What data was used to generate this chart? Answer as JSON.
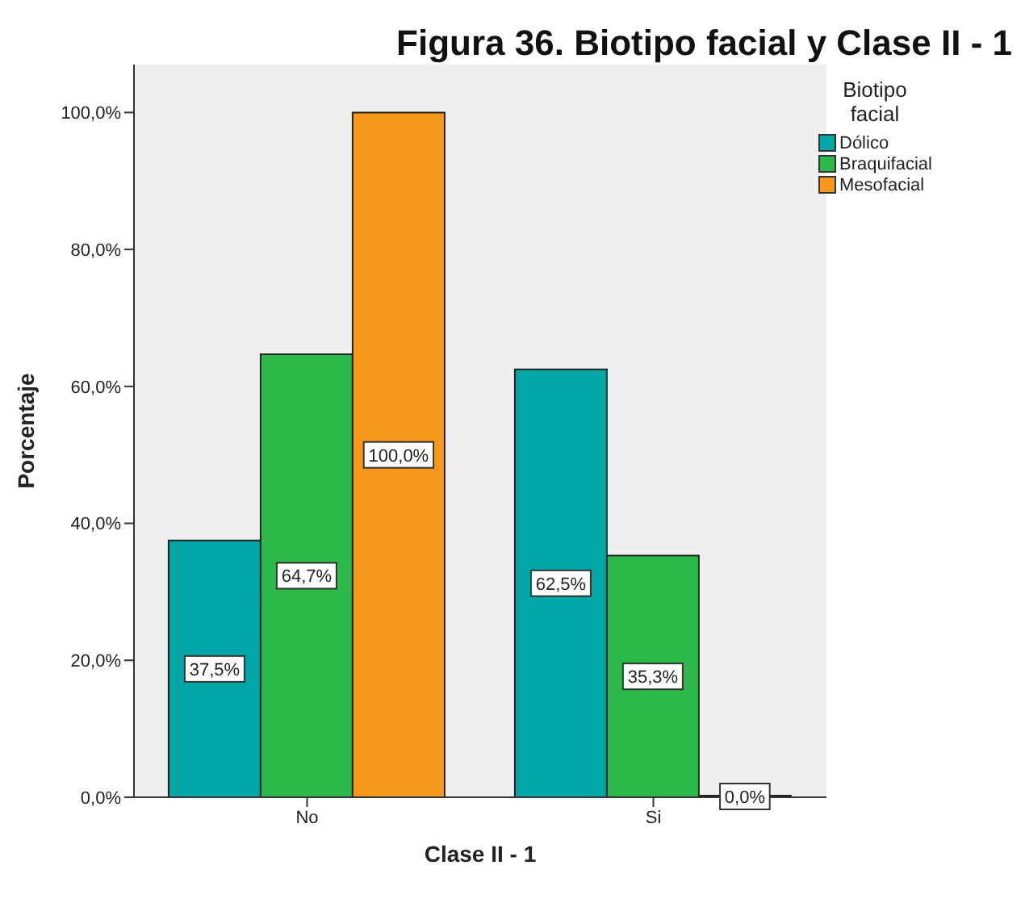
{
  "chart_data": {
    "type": "bar",
    "title": "Figura 36. Biotipo facial y Clase II - 1",
    "xlabel": "Clase II - 1",
    "ylabel": "Porcentaje",
    "legend_title": "Biotipo facial",
    "categories": [
      "No",
      "Si"
    ],
    "series": [
      {
        "name": "Dólico",
        "color": "#00a5a5",
        "values": [
          37.5,
          62.5
        ],
        "value_labels": [
          "37,5%",
          "62,5%"
        ]
      },
      {
        "name": "Braquifacial",
        "color": "#2db84a",
        "values": [
          64.7,
          35.3
        ],
        "value_labels": [
          "64,7%",
          "35,3%"
        ]
      },
      {
        "name": "Mesofacial",
        "color": "#f7981d",
        "values": [
          100,
          0
        ],
        "value_labels": [
          "100,0%",
          "0,0%"
        ]
      }
    ],
    "ylim": [
      0,
      107
    ],
    "yticks": [
      {
        "value": 0,
        "label": "0,0%"
      },
      {
        "value": 20,
        "label": "20,0%"
      },
      {
        "value": 40,
        "label": "40,0%"
      },
      {
        "value": 60,
        "label": "60,0%"
      },
      {
        "value": 80,
        "label": "80,0%"
      },
      {
        "value": 100,
        "label": "100,0%"
      }
    ],
    "grid": false,
    "legend": "top right"
  }
}
